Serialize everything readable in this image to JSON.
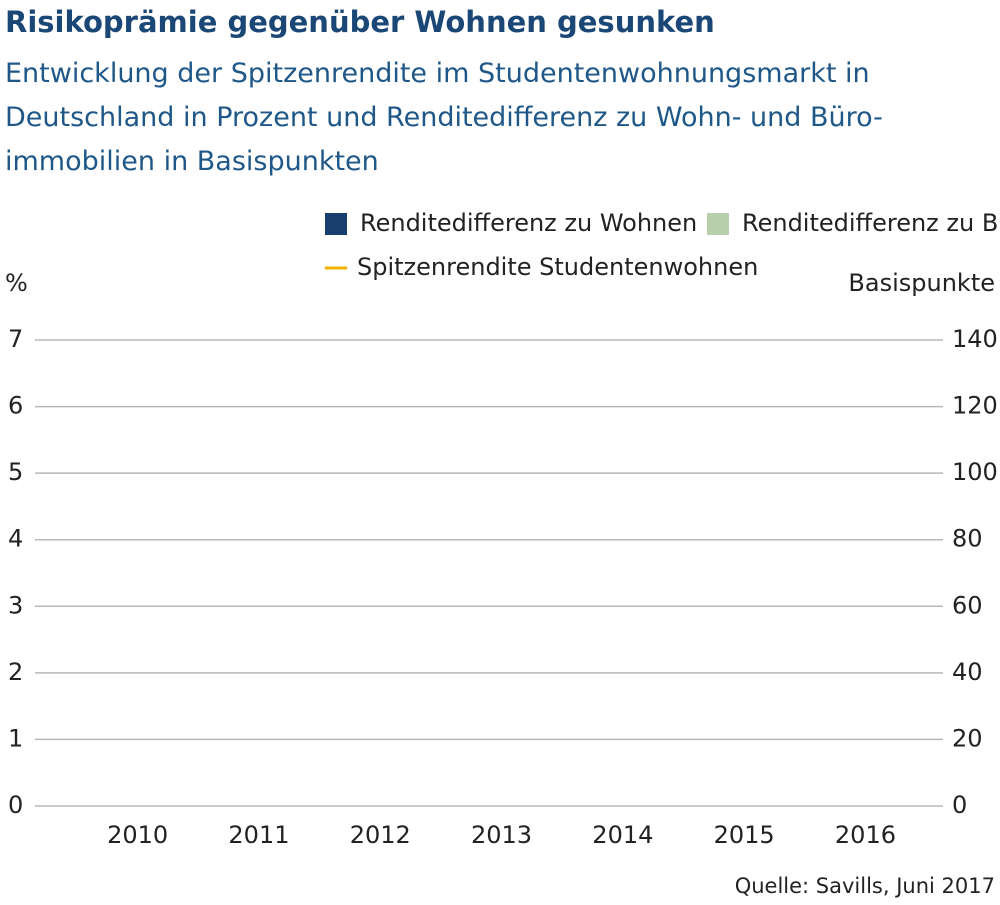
{
  "chart_data": {
    "type": "bar",
    "title": "Risikoprämie gegenüber Wohnen gesunken",
    "subtitle": [
      "Entwicklung der Spitzenrendite im Studentenwohnungsmarkt in",
      "Deutschland in Prozent und Renditedifferenz zu Wohn- und Büro-",
      "immobilien in Basispunkten"
    ],
    "y_label": "%",
    "y2_label": "Basispunkte",
    "source": "Quelle: Savills, Juni 2017",
    "categories": [
      "2010",
      "2011",
      "2012",
      "2013",
      "2014",
      "2015",
      "2016"
    ],
    "series": [
      {
        "name": "Renditedifferenz zu Wohnen",
        "color": "#1a3f6e",
        "axis": "y2",
        "values": [
          null,
          null,
          null,
          null,
          null,
          null,
          null
        ]
      },
      {
        "name": "Renditedifferenz zu Büro",
        "color": "#b7cfaa",
        "axis": "y2",
        "values": [
          null,
          null,
          null,
          null,
          null,
          null,
          null
        ]
      },
      {
        "name": "Spitzenrendite Studentenwohnen",
        "color": "#f0b400",
        "type": "line",
        "values": [
          null,
          null,
          null,
          null,
          null,
          null,
          null
        ]
      }
    ],
    "ylim": [
      0,
      7
    ],
    "yticks": [
      0,
      1,
      2,
      3,
      4,
      5,
      6,
      7
    ],
    "y2lim": [
      0,
      140
    ],
    "y2ticks": [
      0,
      20,
      40,
      60,
      80,
      100,
      120,
      140
    ],
    "grid": true
  }
}
